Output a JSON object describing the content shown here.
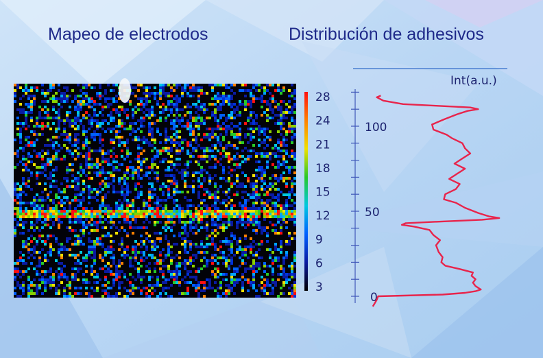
{
  "titles": {
    "left": "Mapeo de electrodos",
    "right": "Distribución de adhesivos"
  },
  "colors": {
    "title": "#1f2a8a",
    "profile_line": "#e8244b",
    "axis": "#3f57b8"
  },
  "chart_data": [
    {
      "type": "heatmap",
      "title": "Mapeo de electrodos",
      "colorbar": {
        "ticks": [
          "3",
          "6",
          "9",
          "12",
          "15",
          "18",
          "21",
          "24",
          "28"
        ],
        "range": [
          3,
          28
        ],
        "colors": [
          "#000000",
          "#0a1aa0",
          "#0060ff",
          "#00c8e0",
          "#28c828",
          "#f0e000",
          "#ff8000",
          "#ff1010"
        ]
      },
      "features": {
        "bright_horizontal_band": "y approx 48 (profile units)",
        "noise": "sparse speckle in blue/cyan/green/red"
      }
    },
    {
      "type": "line",
      "title": "Distribución de adhesivos",
      "xlabel": "Int(a.u.)",
      "ylabel": "",
      "yticks": [
        "0",
        "50",
        "100"
      ],
      "ylim": [
        -6,
        120
      ],
      "points": [
        {
          "y": -6,
          "x": 0.02
        },
        {
          "y": -2,
          "x": 0.05
        },
        {
          "y": 0,
          "x": 0.06
        },
        {
          "y": 1,
          "x": 0.55
        },
        {
          "y": 2,
          "x": 0.72
        },
        {
          "y": 3,
          "x": 0.8
        },
        {
          "y": 4,
          "x": 0.84
        },
        {
          "y": 6,
          "x": 0.8
        },
        {
          "y": 8,
          "x": 0.78
        },
        {
          "y": 10,
          "x": 0.8
        },
        {
          "y": 12,
          "x": 0.77
        },
        {
          "y": 14,
          "x": 0.78
        },
        {
          "y": 16,
          "x": 0.68
        },
        {
          "y": 18,
          "x": 0.57
        },
        {
          "y": 20,
          "x": 0.54
        },
        {
          "y": 23,
          "x": 0.55
        },
        {
          "y": 26,
          "x": 0.52
        },
        {
          "y": 30,
          "x": 0.5
        },
        {
          "y": 33,
          "x": 0.53
        },
        {
          "y": 36,
          "x": 0.48
        },
        {
          "y": 39,
          "x": 0.45
        },
        {
          "y": 41,
          "x": 0.33
        },
        {
          "y": 42,
          "x": 0.24
        },
        {
          "y": 43,
          "x": 0.27
        },
        {
          "y": 44,
          "x": 0.55
        },
        {
          "y": 45,
          "x": 0.85
        },
        {
          "y": 46,
          "x": 0.98
        },
        {
          "y": 47,
          "x": 0.9
        },
        {
          "y": 49,
          "x": 0.82
        },
        {
          "y": 52,
          "x": 0.72
        },
        {
          "y": 55,
          "x": 0.65
        },
        {
          "y": 57,
          "x": 0.56
        },
        {
          "y": 60,
          "x": 0.57
        },
        {
          "y": 63,
          "x": 0.65
        },
        {
          "y": 66,
          "x": 0.68
        },
        {
          "y": 69,
          "x": 0.6
        },
        {
          "y": 72,
          "x": 0.66
        },
        {
          "y": 75,
          "x": 0.72
        },
        {
          "y": 78,
          "x": 0.64
        },
        {
          "y": 81,
          "x": 0.7
        },
        {
          "y": 84,
          "x": 0.76
        },
        {
          "y": 87,
          "x": 0.72
        },
        {
          "y": 90,
          "x": 0.7
        },
        {
          "y": 93,
          "x": 0.62
        },
        {
          "y": 95,
          "x": 0.58
        },
        {
          "y": 98,
          "x": 0.48
        },
        {
          "y": 101,
          "x": 0.47
        },
        {
          "y": 104,
          "x": 0.56
        },
        {
          "y": 107,
          "x": 0.66
        },
        {
          "y": 109,
          "x": 0.74
        },
        {
          "y": 110,
          "x": 0.82
        },
        {
          "y": 111,
          "x": 0.76
        },
        {
          "y": 112,
          "x": 0.5
        },
        {
          "y": 113,
          "x": 0.25
        },
        {
          "y": 115,
          "x": 0.1
        },
        {
          "y": 117,
          "x": 0.05
        },
        {
          "y": 118,
          "x": 0.08
        }
      ]
    }
  ]
}
